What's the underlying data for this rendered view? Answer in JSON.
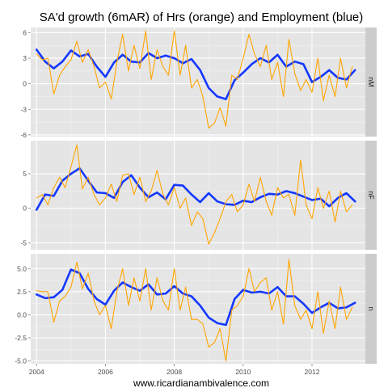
{
  "chart_data": {
    "type": "line",
    "title": "SA'd growth (6mAR) of Hrs (orange) and Employment (blue)",
    "xlabel": "www.ricardianambivalence.com",
    "ylabel": "",
    "legend": "none",
    "grid": true,
    "x_ticks": [
      "2004",
      "2006",
      "2008",
      "2010",
      "2012"
    ],
    "xlim": [
      2003.83,
      2013.55
    ],
    "colors": {
      "hours": "#FFA500",
      "employment": "#1438FF",
      "panel_bg": "#E5E5E5",
      "strip_bg": "#CCCCCC",
      "grid": "#FFFFFF"
    },
    "panels": [
      {
        "strip": "nM",
        "ylim": [
          -6.2,
          6.6
        ],
        "y_ticks": [
          -6,
          -3,
          0,
          3,
          6
        ],
        "y_tick_labels": [
          "-6",
          "-3",
          "0",
          "3",
          "6"
        ],
        "series": [
          {
            "key": "employment",
            "x": [
              2004.0,
              2004.25,
              2004.5,
              2004.75,
              2005.0,
              2005.25,
              2005.5,
              2005.75,
              2006.0,
              2006.25,
              2006.5,
              2006.75,
              2007.0,
              2007.25,
              2007.5,
              2007.75,
              2008.0,
              2008.25,
              2008.5,
              2008.75,
              2009.0,
              2009.25,
              2009.5,
              2009.75,
              2010.0,
              2010.25,
              2010.5,
              2010.75,
              2011.0,
              2011.25,
              2011.5,
              2011.75,
              2012.0,
              2012.25,
              2012.5,
              2012.75,
              2013.0,
              2013.25
            ],
            "y": [
              4.0,
              2.6,
              1.8,
              2.6,
              3.9,
              3.2,
              3.5,
              2.0,
              0.8,
              2.5,
              3.4,
              2.6,
              2.5,
              3.6,
              3.0,
              3.3,
              3.0,
              2.4,
              2.9,
              1.6,
              -0.5,
              -1.5,
              -1.8,
              0.4,
              1.3,
              2.3,
              3.0,
              2.5,
              3.4,
              2.0,
              2.6,
              2.3,
              0.2,
              0.8,
              1.6,
              0.7,
              0.5,
              1.6
            ]
          },
          {
            "key": "hours",
            "x": [
              2004.0,
              2004.17,
              2004.33,
              2004.5,
              2004.67,
              2004.83,
              2005.0,
              2005.17,
              2005.33,
              2005.5,
              2005.67,
              2005.83,
              2006.0,
              2006.17,
              2006.33,
              2006.5,
              2006.67,
              2006.83,
              2007.0,
              2007.17,
              2007.33,
              2007.5,
              2007.67,
              2007.83,
              2008.0,
              2008.17,
              2008.33,
              2008.5,
              2008.67,
              2008.83,
              2009.0,
              2009.17,
              2009.33,
              2009.5,
              2009.67,
              2009.83,
              2010.0,
              2010.17,
              2010.33,
              2010.5,
              2010.67,
              2010.83,
              2011.0,
              2011.17,
              2011.33,
              2011.5,
              2011.67,
              2011.83,
              2012.0,
              2012.17,
              2012.33,
              2012.5,
              2012.67,
              2012.83,
              2013.0,
              2013.17
            ],
            "y": [
              3.5,
              2.8,
              3.0,
              -1.2,
              1.0,
              2.0,
              2.8,
              5.0,
              2.5,
              4.0,
              2.0,
              -0.5,
              0.2,
              -1.8,
              2.5,
              5.8,
              1.5,
              4.5,
              1.8,
              6.2,
              0.5,
              4.0,
              2.0,
              1.0,
              6.2,
              1.0,
              4.5,
              -0.5,
              0.5,
              -1.5,
              -5.2,
              -4.6,
              -2.8,
              -5.0,
              1.0,
              0.5,
              3.0,
              5.8,
              3.5,
              2.0,
              4.5,
              0.5,
              2.5,
              -1.5,
              5.2,
              1.2,
              -0.8,
              0.5,
              -1.0,
              3.0,
              -2.0,
              1.0,
              -1.5,
              3.0,
              -0.5,
              2.0
            ]
          }
        ]
      },
      {
        "strip": "nF",
        "ylim": [
          -6.0,
          9.8
        ],
        "y_ticks": [
          -5,
          0,
          5
        ],
        "y_tick_labels": [
          "-5",
          "0",
          "5"
        ],
        "series": [
          {
            "key": "employment",
            "x": [
              2004.0,
              2004.25,
              2004.5,
              2004.75,
              2005.0,
              2005.25,
              2005.5,
              2005.75,
              2006.0,
              2006.25,
              2006.5,
              2006.75,
              2007.0,
              2007.25,
              2007.5,
              2007.75,
              2008.0,
              2008.25,
              2008.5,
              2008.75,
              2009.0,
              2009.25,
              2009.5,
              2009.75,
              2010.0,
              2010.25,
              2010.5,
              2010.75,
              2011.0,
              2011.25,
              2011.5,
              2011.75,
              2012.0,
              2012.25,
              2012.5,
              2012.75,
              2013.0,
              2013.25
            ],
            "y": [
              -0.2,
              2.0,
              1.8,
              4.0,
              5.0,
              5.8,
              4.0,
              2.3,
              2.2,
              1.5,
              3.8,
              4.8,
              3.0,
              1.6,
              2.3,
              1.3,
              3.4,
              3.3,
              2.0,
              0.9,
              2.2,
              1.0,
              0.6,
              0.5,
              1.1,
              0.9,
              1.6,
              2.1,
              2.0,
              2.5,
              2.2,
              1.7,
              1.2,
              1.4,
              0.3,
              1.5,
              2.2,
              1.0
            ]
          },
          {
            "key": "hours",
            "x": [
              2004.0,
              2004.17,
              2004.33,
              2004.5,
              2004.67,
              2004.83,
              2005.0,
              2005.17,
              2005.33,
              2005.5,
              2005.67,
              2005.83,
              2006.0,
              2006.17,
              2006.33,
              2006.5,
              2006.67,
              2006.83,
              2007.0,
              2007.17,
              2007.33,
              2007.5,
              2007.67,
              2007.83,
              2008.0,
              2008.17,
              2008.33,
              2008.5,
              2008.67,
              2008.83,
              2009.0,
              2009.17,
              2009.33,
              2009.5,
              2009.67,
              2009.83,
              2010.0,
              2010.17,
              2010.33,
              2010.5,
              2010.67,
              2010.83,
              2011.0,
              2011.17,
              2011.33,
              2011.5,
              2011.67,
              2011.83,
              2012.0,
              2012.17,
              2012.33,
              2012.5,
              2012.67,
              2012.83,
              2013.0,
              2013.17
            ],
            "y": [
              1.5,
              2.0,
              0.5,
              3.0,
              4.5,
              3.0,
              6.0,
              9.2,
              2.8,
              4.5,
              2.0,
              0.5,
              1.5,
              3.5,
              1.0,
              4.8,
              5.0,
              2.0,
              4.5,
              1.0,
              2.5,
              5.5,
              2.0,
              0.5,
              3.0,
              0.0,
              1.5,
              -2.5,
              -0.5,
              -1.5,
              -5.2,
              -3.5,
              -1.5,
              1.0,
              2.0,
              -0.5,
              0.5,
              3.5,
              1.0,
              4.5,
              1.0,
              -1.0,
              3.0,
              1.5,
              2.0,
              -1.0,
              7.0,
              0.5,
              -1.5,
              3.0,
              0.0,
              2.5,
              -2.0,
              2.5,
              -0.5,
              0.5
            ]
          }
        ]
      },
      {
        "strip": "n",
        "ylim": [
          -5.3,
          6.6
        ],
        "y_ticks": [
          -5.0,
          -2.5,
          0.0,
          2.5,
          5.0
        ],
        "y_tick_labels": [
          "-5.0",
          "-2.5",
          "0.0",
          "2.5",
          "5.0"
        ],
        "series": [
          {
            "key": "employment",
            "x": [
              2004.0,
              2004.25,
              2004.5,
              2004.75,
              2005.0,
              2005.25,
              2005.5,
              2005.75,
              2006.0,
              2006.25,
              2006.5,
              2006.75,
              2007.0,
              2007.25,
              2007.5,
              2007.75,
              2008.0,
              2008.25,
              2008.5,
              2008.75,
              2009.0,
              2009.25,
              2009.5,
              2009.75,
              2010.0,
              2010.25,
              2010.5,
              2010.75,
              2011.0,
              2011.25,
              2011.5,
              2011.75,
              2012.0,
              2012.25,
              2012.5,
              2012.75,
              2013.0,
              2013.25
            ],
            "y": [
              2.2,
              1.8,
              1.9,
              2.7,
              4.9,
              4.5,
              2.8,
              1.7,
              1.1,
              2.6,
              3.5,
              3.0,
              2.6,
              3.3,
              2.2,
              2.3,
              3.1,
              2.3,
              2.0,
              1.0,
              -0.3,
              -0.9,
              -1.1,
              1.7,
              2.7,
              2.4,
              2.5,
              2.3,
              3.0,
              2.0,
              2.0,
              1.2,
              0.2,
              0.8,
              1.3,
              0.7,
              0.8,
              1.3
            ]
          },
          {
            "key": "hours",
            "x": [
              2004.0,
              2004.17,
              2004.33,
              2004.5,
              2004.67,
              2004.83,
              2005.0,
              2005.17,
              2005.33,
              2005.5,
              2005.67,
              2005.83,
              2006.0,
              2006.17,
              2006.33,
              2006.5,
              2006.67,
              2006.83,
              2007.0,
              2007.17,
              2007.33,
              2007.5,
              2007.67,
              2007.83,
              2008.0,
              2008.17,
              2008.33,
              2008.5,
              2008.67,
              2008.83,
              2009.0,
              2009.17,
              2009.33,
              2009.5,
              2009.67,
              2009.83,
              2010.0,
              2010.17,
              2010.33,
              2010.5,
              2010.67,
              2010.83,
              2011.0,
              2011.17,
              2011.33,
              2011.5,
              2011.67,
              2011.83,
              2012.0,
              2012.17,
              2012.33,
              2012.5,
              2012.67,
              2012.83,
              2013.0,
              2013.17
            ],
            "y": [
              2.6,
              2.5,
              2.5,
              -0.8,
              1.5,
              2.0,
              3.0,
              5.7,
              2.8,
              4.5,
              1.5,
              0.0,
              1.0,
              -1.5,
              2.5,
              5.0,
              1.0,
              4.0,
              1.5,
              5.0,
              0.5,
              4.0,
              1.5,
              0.5,
              5.0,
              0.5,
              3.0,
              -0.5,
              -0.5,
              -1.0,
              -3.5,
              -3.0,
              -1.5,
              -5.0,
              0.5,
              1.0,
              2.0,
              5.0,
              2.5,
              3.5,
              4.0,
              0.5,
              2.5,
              -1.0,
              6.0,
              1.0,
              -0.5,
              0.5,
              -1.5,
              2.5,
              -2.0,
              1.5,
              -1.5,
              3.0,
              -0.5,
              0.8
            ]
          }
        ]
      }
    ]
  }
}
